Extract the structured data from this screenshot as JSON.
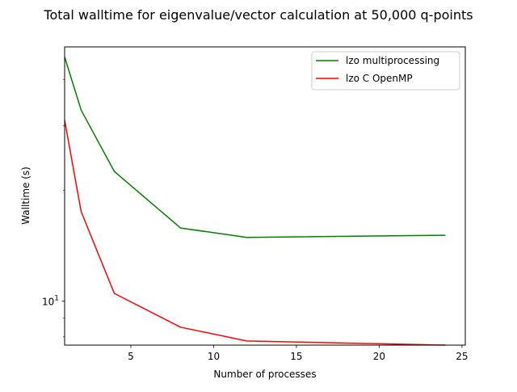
{
  "chart_data": {
    "type": "line",
    "title": "Total walltime for eigenvalue/vector calculation at 50,000 q-points",
    "xlabel": "Number of processes",
    "ylabel": "Walltime (s)",
    "xlim": [
      1,
      25.2
    ],
    "ylim": [
      7.6,
      49
    ],
    "yscale": "log",
    "x_ticks": [
      5,
      10,
      15,
      20,
      25
    ],
    "x_tick_labels": [
      "5",
      "10",
      "15",
      "20",
      "25"
    ],
    "y_major_ticks": [
      10
    ],
    "y_tick_labels": [
      {
        "base": "10",
        "exponent": "1"
      }
    ],
    "y_minor_ticks": [
      8,
      9,
      20,
      30,
      40
    ],
    "grid": false,
    "legend_position": "top-right",
    "series": [
      {
        "name": "lzo multiprocessing",
        "color": "#008000",
        "x": [
          1,
          2,
          4,
          8,
          12,
          24
        ],
        "y": [
          46.0,
          33.0,
          22.5,
          15.8,
          14.9,
          15.1
        ]
      },
      {
        "name": "lzo C OpenMP",
        "color": "#ff0000",
        "x": [
          1,
          2,
          4,
          8,
          12,
          24
        ],
        "y": [
          31.0,
          17.5,
          10.5,
          8.5,
          7.8,
          7.6
        ]
      }
    ]
  }
}
